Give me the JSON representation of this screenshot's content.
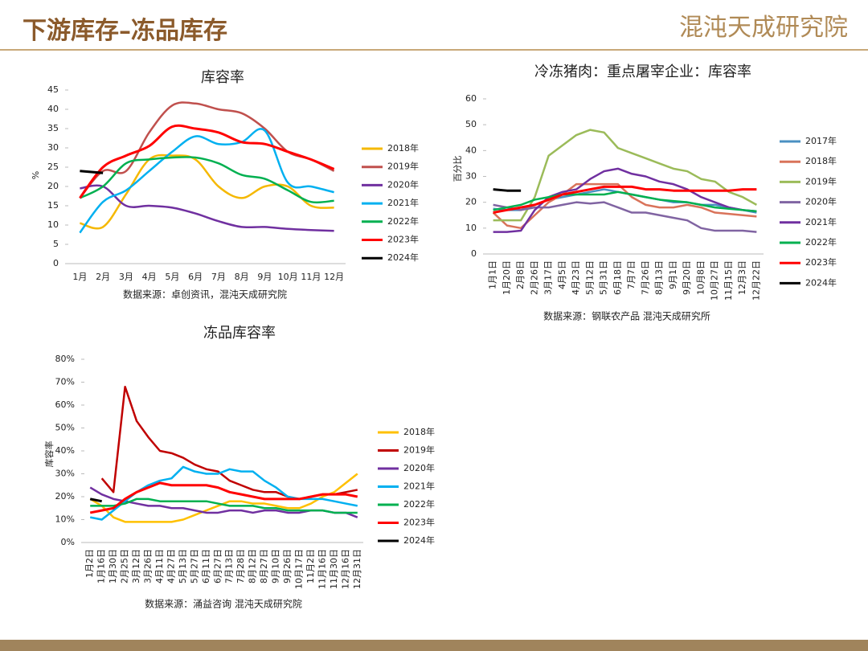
{
  "header": {
    "title": "下游库存–冻品库存",
    "logo": "混沌天成研究院"
  },
  "chart_data": [
    {
      "type": "line",
      "smooth": true,
      "title": "库容率",
      "y_label": "%",
      "source": "数据来源：卓创资讯，混沌天成研究院",
      "categories": [
        "1月",
        "2月",
        "3月",
        "4月",
        "5月",
        "6月",
        "7月",
        "8月",
        "9月",
        "10月",
        "11月",
        "12月"
      ],
      "ylim": [
        0,
        45
      ],
      "yticks": [
        0,
        5,
        10,
        15,
        20,
        25,
        30,
        35,
        40,
        45
      ],
      "series": [
        {
          "name": "2018年",
          "color": "#f5b800",
          "values": [
            10.5,
            9.5,
            18,
            27,
            28,
            27,
            20,
            17,
            20,
            20,
            15,
            14.5
          ]
        },
        {
          "name": "2019年",
          "color": "#c0504d",
          "values": [
            17,
            24,
            24,
            34,
            41,
            41.5,
            40,
            39,
            35,
            29,
            27,
            24
          ]
        },
        {
          "name": "2020年",
          "color": "#7030a0",
          "values": [
            19.5,
            20,
            15,
            15,
            14.5,
            13,
            11,
            9.5,
            9.5,
            9,
            8.7,
            8.5
          ]
        },
        {
          "name": "2021年",
          "color": "#00b0f0",
          "values": [
            8,
            16,
            19,
            24,
            29,
            33,
            31,
            31.5,
            34.5,
            21,
            20,
            18.5
          ]
        },
        {
          "name": "2022年",
          "color": "#00b050",
          "values": [
            17,
            20,
            26,
            27,
            27.5,
            27.5,
            26,
            23,
            22,
            19,
            16,
            16.3
          ]
        },
        {
          "name": "2023年",
          "color": "#ff0000",
          "values": [
            17,
            25,
            28,
            30.5,
            35.5,
            35,
            34,
            31.5,
            31,
            29,
            27,
            24.5
          ]
        },
        {
          "name": "2024年",
          "color": "#000000",
          "values": [
            24,
            23.5,
            null,
            null,
            null,
            null,
            null,
            null,
            null,
            null,
            null,
            null
          ]
        }
      ]
    },
    {
      "type": "line",
      "title": "冷冻猪肉：重点屠宰企业：库容率",
      "y_label": "百分比",
      "source": "数据来源：钢联农产品 混沌天成研究所",
      "categories": [
        "1月1日",
        "1月20日",
        "2月8日",
        "2月26日",
        "3月17日",
        "4月5日",
        "4月23日",
        "5月12日",
        "5月31日",
        "6月18日",
        "7月7日",
        "7月26日",
        "8月13日",
        "9月1日",
        "9月20日",
        "10月8日",
        "10月27日",
        "11月15日",
        "12月3日",
        "12月22日"
      ],
      "ylim": [
        0,
        60
      ],
      "yticks": [
        0,
        10,
        20,
        30,
        40,
        50,
        60
      ],
      "series": [
        {
          "name": "2017年",
          "color": "#4a90c2",
          "values": [
            17.5,
            17,
            17,
            19,
            21,
            22,
            23,
            24,
            25,
            24,
            23,
            22,
            21,
            20,
            20,
            19,
            19,
            18,
            17,
            16
          ]
        },
        {
          "name": "2018年",
          "color": "#d9735a",
          "values": [
            16,
            11,
            10,
            15,
            20,
            23,
            27,
            27,
            27,
            27,
            22,
            19,
            18,
            18,
            19,
            18,
            16,
            15.5,
            15,
            14.5
          ]
        },
        {
          "name": "2019年",
          "color": "#9bbb59",
          "values": [
            13,
            13,
            13,
            22,
            38,
            42,
            46,
            48,
            47,
            41,
            39,
            37,
            35,
            33,
            32,
            29,
            28,
            24,
            22,
            19
          ]
        },
        {
          "name": "2020年",
          "color": "#8064a2",
          "values": [
            19,
            18,
            17,
            18,
            18,
            19,
            20,
            19.5,
            20,
            18,
            16,
            16,
            15,
            14,
            13,
            10,
            9,
            9,
            9,
            8.5
          ]
        },
        {
          "name": "2021年",
          "color": "#7030a0",
          "values": [
            8.5,
            8.5,
            9,
            17,
            22,
            24,
            25,
            29,
            32,
            33,
            31,
            30,
            28,
            27,
            25,
            22,
            20,
            18,
            17,
            16.5
          ]
        },
        {
          "name": "2022年",
          "color": "#00b050",
          "values": [
            17,
            18,
            19,
            21,
            22,
            23,
            23,
            23,
            23,
            24,
            23,
            22,
            21,
            20.5,
            20,
            19,
            18,
            17.5,
            17,
            16.5
          ]
        },
        {
          "name": "2023年",
          "color": "#ff0000",
          "values": [
            16,
            17,
            18,
            19,
            21,
            23,
            24,
            25,
            26,
            26,
            26,
            25,
            25,
            24.5,
            24.5,
            24.5,
            24.5,
            24.5,
            25,
            25
          ]
        },
        {
          "name": "2024年",
          "color": "#000000",
          "values": [
            25,
            24.5,
            24.5,
            null,
            null,
            null,
            null,
            null,
            null,
            null,
            null,
            null,
            null,
            null,
            null,
            null,
            null,
            null,
            null,
            null
          ]
        }
      ]
    },
    {
      "type": "line",
      "title": "冻品库容率",
      "y_label": "库容率",
      "source": "数据来源：涌益咨询 混沌天成研究院",
      "categories": [
        "1月2日",
        "1月16日",
        "1月30日",
        "2月25日",
        "3月12日",
        "3月26日",
        "4月11日",
        "4月27日",
        "5月13日",
        "5月27日",
        "6月11日",
        "6月27日",
        "7月13日",
        "7月28日",
        "8月12日",
        "8月27日",
        "9月10日",
        "9月26日",
        "10月17日",
        "11月2日",
        "11月16日",
        "11月30日",
        "12月16日",
        "12月31日"
      ],
      "ylim": [
        0,
        80
      ],
      "yticks": [
        {
          "value": 0,
          "label": "0%"
        },
        {
          "value": 10,
          "label": "10%"
        },
        {
          "value": 20,
          "label": "20%"
        },
        {
          "value": 30,
          "label": "30%"
        },
        {
          "value": 40,
          "label": "40%"
        },
        {
          "value": 50,
          "label": "50%"
        },
        {
          "value": 60,
          "label": "60%"
        },
        {
          "value": 70,
          "label": "70%"
        },
        {
          "value": 80,
          "label": "80%"
        }
      ],
      "series": [
        {
          "name": "2018年",
          "color": "#ffc000",
          "values": [
            19,
            16,
            11,
            9,
            9,
            9,
            9,
            9,
            10,
            12,
            14,
            16,
            18,
            18,
            17,
            17,
            16,
            15,
            15,
            17,
            20,
            22,
            26,
            30
          ]
        },
        {
          "name": "2019年",
          "color": "#c00000",
          "values": [
            null,
            28,
            22,
            68,
            53,
            46,
            40,
            39,
            37,
            34,
            32,
            31,
            27,
            25,
            23,
            22,
            22,
            20,
            19,
            20,
            21,
            21,
            22,
            23
          ]
        },
        {
          "name": "2020年",
          "color": "#7030a0",
          "values": [
            24,
            21,
            19,
            18,
            17,
            16,
            16,
            15,
            15,
            14,
            13,
            13,
            14,
            14,
            13,
            14,
            14,
            13,
            13,
            14,
            14,
            13,
            13,
            11
          ]
        },
        {
          "name": "2021年",
          "color": "#00b0f0",
          "values": [
            11,
            10,
            14,
            18,
            22,
            25,
            27,
            28,
            33,
            31,
            30,
            30,
            32,
            31,
            31,
            27,
            24,
            20,
            19,
            19,
            19,
            18,
            17,
            16
          ]
        },
        {
          "name": "2022年",
          "color": "#00b050",
          "values": [
            16,
            16,
            16,
            17,
            19,
            19,
            18,
            18,
            18,
            18,
            18,
            17,
            16,
            16,
            16,
            15,
            15,
            14,
            14,
            14,
            14,
            13,
            13,
            13
          ]
        },
        {
          "name": "2023年",
          "color": "#ff0000",
          "values": [
            13,
            14,
            15,
            19,
            22,
            24,
            26,
            25,
            25,
            25,
            25,
            24,
            22,
            21,
            20,
            19,
            19,
            19,
            19,
            20,
            21,
            21,
            21,
            20
          ]
        },
        {
          "name": "2024年",
          "color": "#000000",
          "values": [
            19,
            18,
            null,
            null,
            null,
            null,
            null,
            null,
            null,
            null,
            null,
            null,
            null,
            null,
            null,
            null,
            null,
            null,
            null,
            null,
            null,
            null,
            null,
            null
          ]
        }
      ]
    }
  ]
}
